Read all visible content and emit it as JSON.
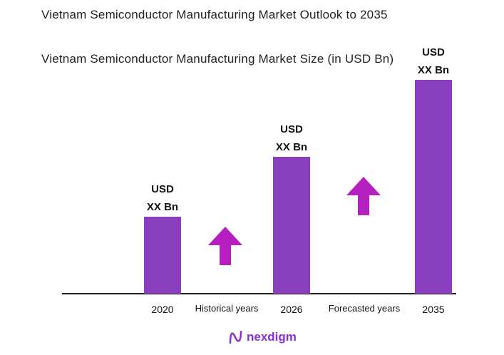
{
  "title": "Vietnam Semiconductor Manufacturing Market Outlook to 2035",
  "subtitle": "Vietnam Semiconductor Manufacturing Market Size (in USD Bn)",
  "chart_data": {
    "type": "bar",
    "categories": [
      "2020",
      "2026",
      "2035"
    ],
    "relative_values_index_2035_100": [
      36,
      64,
      100
    ],
    "data_labels": [
      [
        "USD",
        "XX Bn"
      ],
      [
        "USD",
        "XX Bn"
      ],
      [
        "USD",
        "XX Bn"
      ]
    ],
    "period_labels": [
      "Historical years",
      "Forecasted years"
    ],
    "annotations": [
      "up-arrow",
      "up-arrow"
    ],
    "grid": false,
    "colors": {
      "bar": "#8a3fbf",
      "arrow": "#b51fbf",
      "axis": "#222222"
    }
  },
  "brand": {
    "name": "nexdigm",
    "color": "#8a2fd0"
  }
}
